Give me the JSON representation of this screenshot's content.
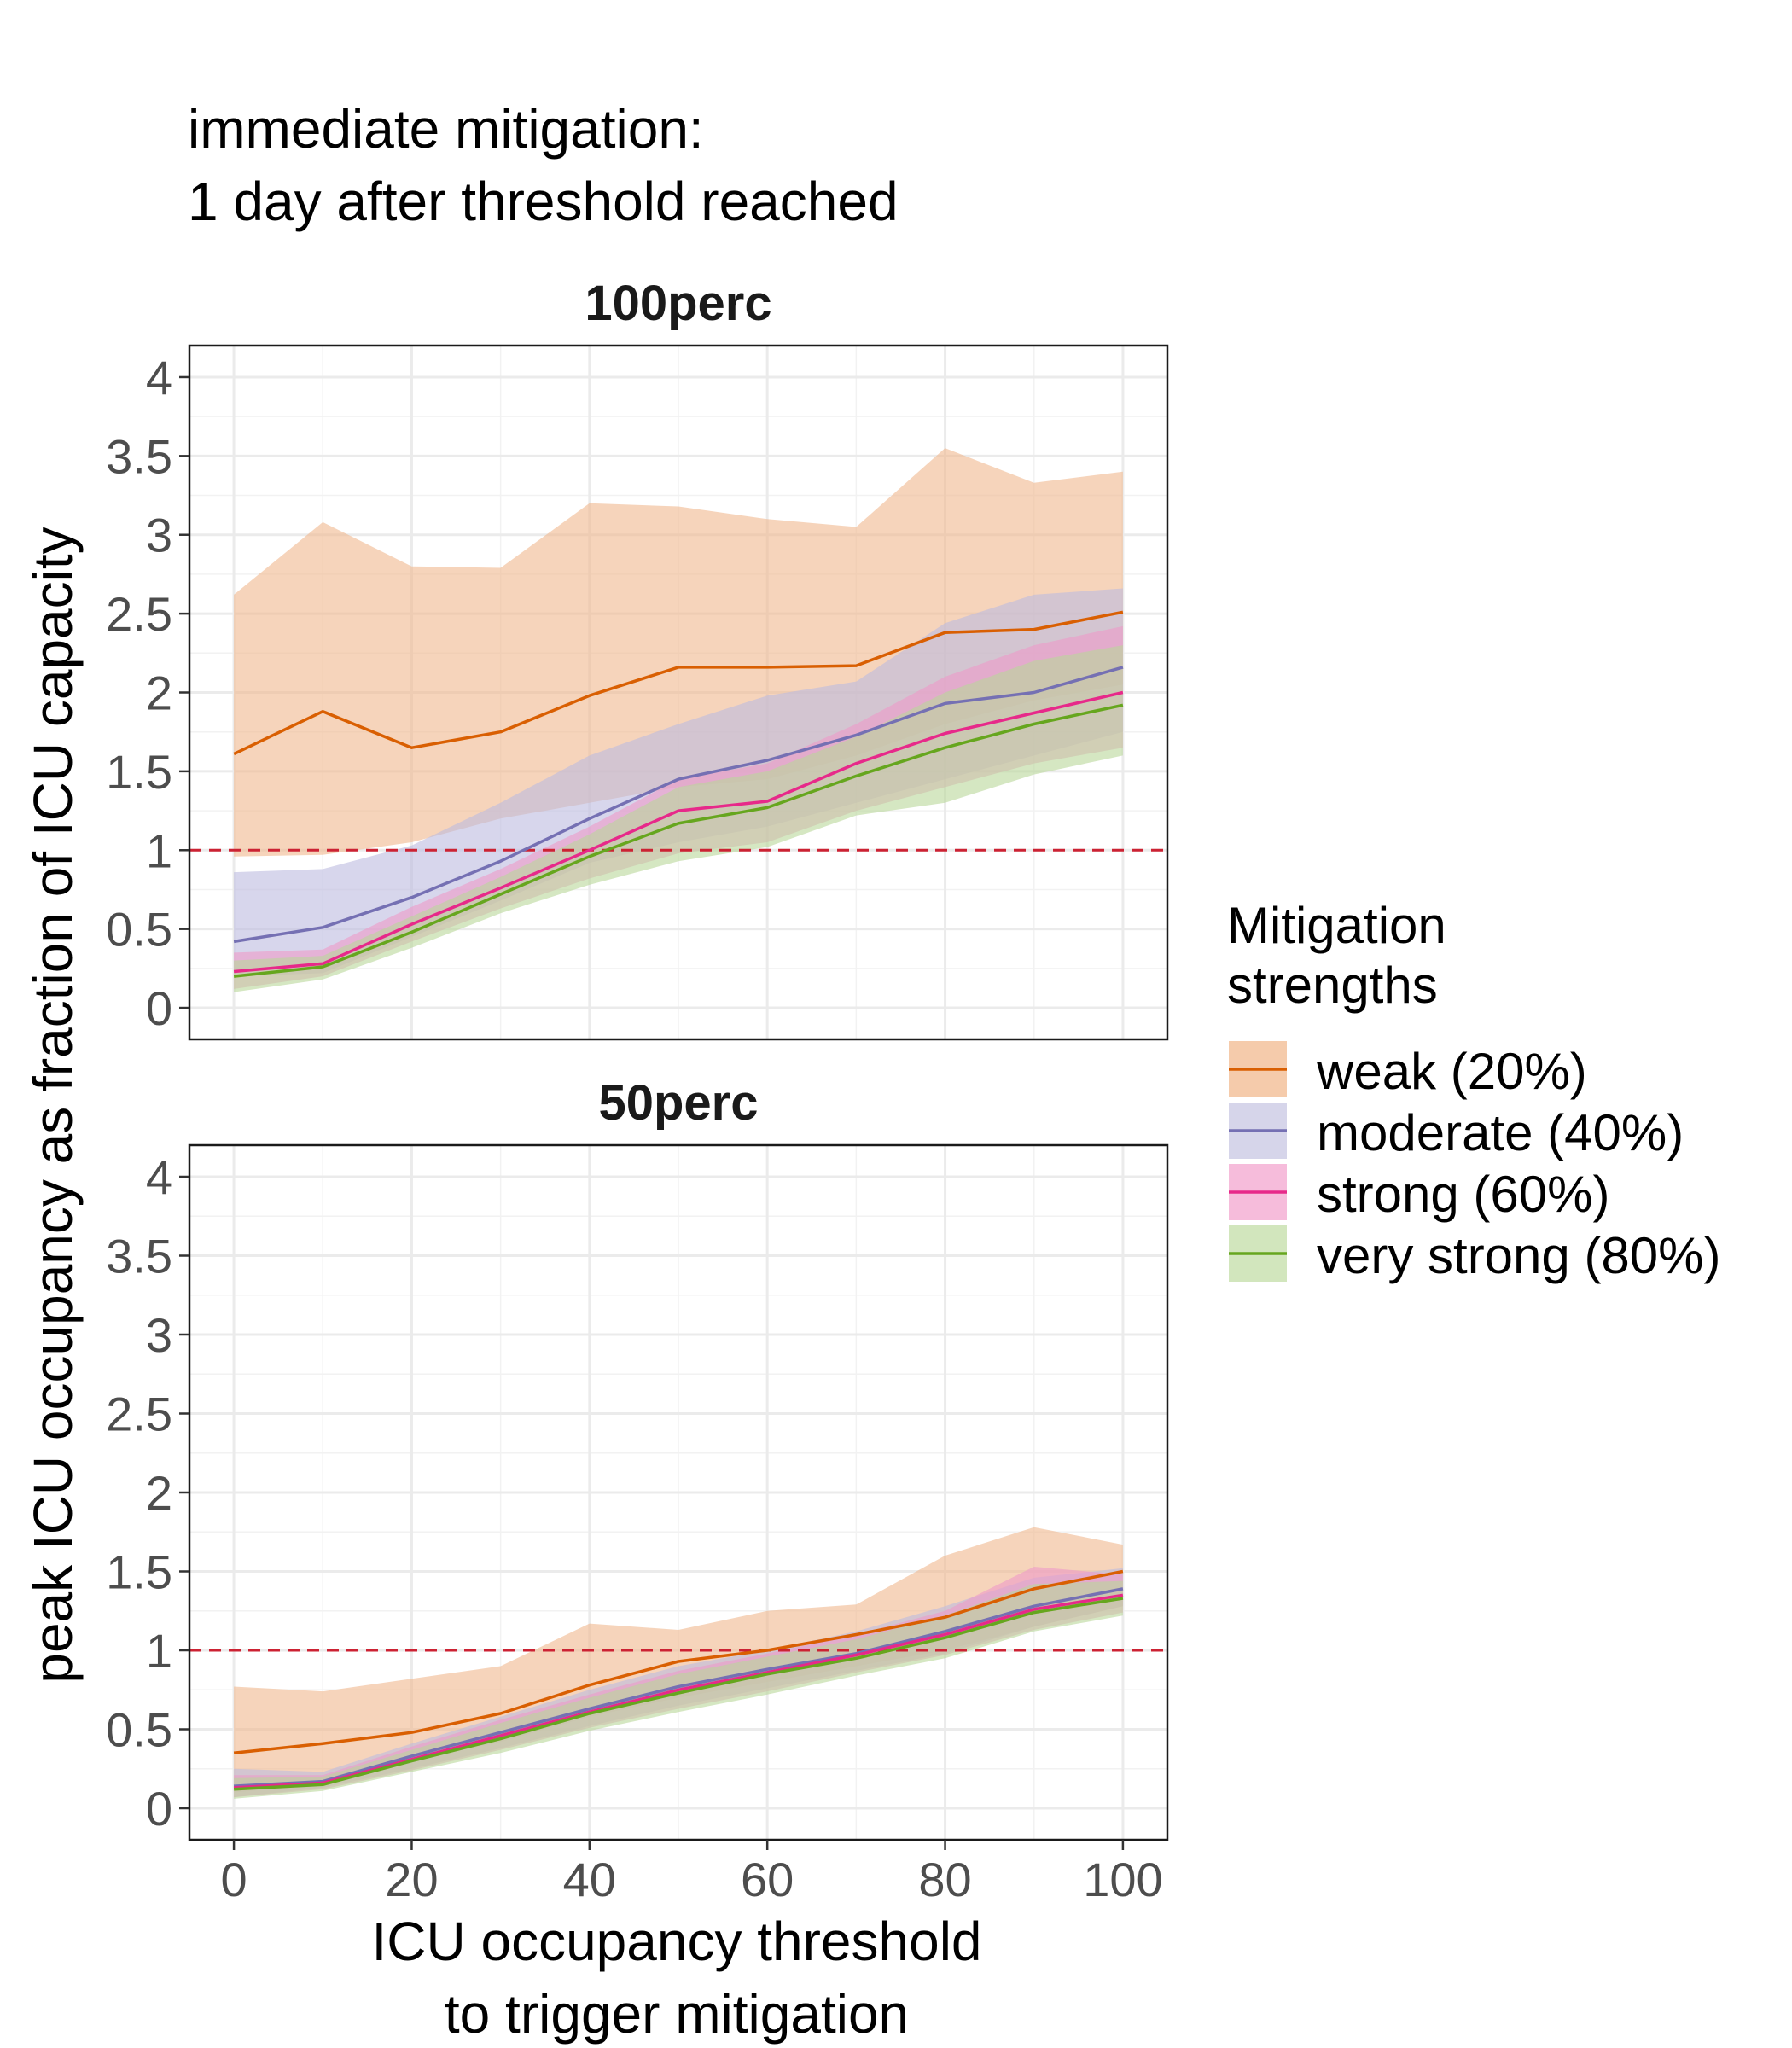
{
  "figure": {
    "title_lines": [
      "immediate mitigation:",
      "1 day after threshold reached"
    ],
    "ylabel": "peak ICU occupancy as fraction of ICU capacity",
    "xlabel_lines": [
      "ICU occupancy threshold",
      "to trigger mitigation"
    ]
  },
  "legend": {
    "title_lines": [
      "Mitigation",
      "strengths"
    ],
    "entries": [
      {
        "label": "weak (20%)",
        "line_color": "#d95f02",
        "fill_color": "#f5cbab"
      },
      {
        "label": "moderate (40%)",
        "line_color": "#7570b3",
        "fill_color": "#d6d5ea"
      },
      {
        "label": "strong (60%)",
        "line_color": "#e7298a",
        "fill_color": "#f6bcdb"
      },
      {
        "label": "very strong (80%)",
        "line_color": "#66a61e",
        "fill_color": "#d2e6bd"
      }
    ]
  },
  "chart_data": [
    {
      "type": "line",
      "title": "100perc",
      "x": [
        0,
        10,
        20,
        30,
        40,
        50,
        60,
        70,
        80,
        90,
        100
      ],
      "xlim": [
        -5,
        105
      ],
      "ylim": [
        -0.2,
        4.2
      ],
      "x_ticks": [
        0,
        20,
        40,
        60,
        80,
        100
      ],
      "y_ticks": [
        0,
        0.5,
        1,
        1.5,
        2,
        2.5,
        3,
        3.5,
        4
      ],
      "y_tick_labels": [
        "0",
        "0.5",
        "1",
        "1.5",
        "2",
        "2.5",
        "3",
        "3.5",
        "4"
      ],
      "show_x_ticks": false,
      "reference_line": {
        "y": 1,
        "color": "#cc2233",
        "style": "dashed"
      },
      "grid": true,
      "series": [
        {
          "name": "weak (20%)",
          "color": "#d95f02",
          "fill": "#f0b88d",
          "values": [
            1.61,
            1.88,
            1.65,
            1.75,
            1.98,
            2.16,
            2.16,
            2.17,
            2.38,
            2.4,
            2.51
          ],
          "lower": [
            0.96,
            0.97,
            1.05,
            1.2,
            1.3,
            1.4,
            1.45,
            1.6,
            1.8,
            1.95,
            2.05
          ],
          "upper": [
            2.62,
            3.08,
            2.8,
            2.79,
            3.2,
            3.18,
            3.1,
            3.05,
            3.55,
            3.33,
            3.4
          ]
        },
        {
          "name": "moderate (40%)",
          "color": "#7570b3",
          "fill": "#bcbadf",
          "values": [
            0.42,
            0.51,
            0.7,
            0.93,
            1.2,
            1.45,
            1.57,
            1.73,
            1.93,
            2.0,
            2.16
          ],
          "lower": [
            0.2,
            0.22,
            0.45,
            0.68,
            0.92,
            1.05,
            1.15,
            1.3,
            1.45,
            1.6,
            1.75
          ],
          "upper": [
            0.86,
            0.88,
            1.03,
            1.3,
            1.6,
            1.8,
            1.98,
            2.07,
            2.44,
            2.62,
            2.66
          ]
        },
        {
          "name": "strong (60%)",
          "color": "#e7298a",
          "fill": "#ee9ac8",
          "values": [
            0.23,
            0.28,
            0.53,
            0.76,
            1.0,
            1.25,
            1.31,
            1.55,
            1.74,
            1.87,
            2.0
          ],
          "lower": [
            0.12,
            0.2,
            0.42,
            0.63,
            0.82,
            0.98,
            1.05,
            1.25,
            1.4,
            1.55,
            1.65
          ],
          "upper": [
            0.35,
            0.37,
            0.64,
            0.88,
            1.15,
            1.45,
            1.55,
            1.8,
            2.1,
            2.3,
            2.42
          ]
        },
        {
          "name": "very strong (80%)",
          "color": "#66a61e",
          "fill": "#b9d79a",
          "values": [
            0.2,
            0.26,
            0.48,
            0.72,
            0.96,
            1.17,
            1.27,
            1.47,
            1.65,
            1.8,
            1.92
          ],
          "lower": [
            0.1,
            0.18,
            0.38,
            0.6,
            0.78,
            0.93,
            1.02,
            1.22,
            1.3,
            1.48,
            1.6
          ],
          "upper": [
            0.3,
            0.33,
            0.58,
            0.83,
            1.1,
            1.4,
            1.5,
            1.72,
            2.0,
            2.2,
            2.3
          ]
        }
      ]
    },
    {
      "type": "line",
      "title": "50perc",
      "x": [
        0,
        10,
        20,
        30,
        40,
        50,
        60,
        70,
        80,
        90,
        100
      ],
      "xlim": [
        -5,
        105
      ],
      "ylim": [
        -0.2,
        4.2
      ],
      "x_ticks": [
        0,
        20,
        40,
        60,
        80,
        100
      ],
      "x_tick_labels": [
        "0",
        "20",
        "40",
        "60",
        "80",
        "100"
      ],
      "y_ticks": [
        0,
        0.5,
        1,
        1.5,
        2,
        2.5,
        3,
        3.5,
        4
      ],
      "y_tick_labels": [
        "0",
        "0.5",
        "1",
        "1.5",
        "2",
        "2.5",
        "3",
        "3.5",
        "4"
      ],
      "show_x_ticks": true,
      "reference_line": {
        "y": 1,
        "color": "#cc2233",
        "style": "dashed"
      },
      "grid": true,
      "series": [
        {
          "name": "weak (20%)",
          "color": "#d95f02",
          "fill": "#f0b88d",
          "values": [
            0.35,
            0.41,
            0.48,
            0.6,
            0.78,
            0.93,
            1.0,
            1.1,
            1.21,
            1.39,
            1.5
          ],
          "lower": [
            0.1,
            0.15,
            0.3,
            0.42,
            0.58,
            0.7,
            0.8,
            0.9,
            1.0,
            1.15,
            1.28
          ],
          "upper": [
            0.77,
            0.74,
            0.82,
            0.9,
            1.17,
            1.13,
            1.25,
            1.29,
            1.6,
            1.78,
            1.67
          ]
        },
        {
          "name": "moderate (40%)",
          "color": "#7570b3",
          "fill": "#bcbadf",
          "values": [
            0.14,
            0.17,
            0.33,
            0.48,
            0.63,
            0.77,
            0.88,
            0.98,
            1.12,
            1.28,
            1.39
          ],
          "lower": [
            0.07,
            0.13,
            0.25,
            0.38,
            0.52,
            0.65,
            0.76,
            0.87,
            0.98,
            1.15,
            1.28
          ],
          "upper": [
            0.25,
            0.23,
            0.41,
            0.58,
            0.75,
            0.9,
            1.0,
            1.12,
            1.28,
            1.46,
            1.52
          ]
        },
        {
          "name": "strong (60%)",
          "color": "#e7298a",
          "fill": "#ee9ac8",
          "values": [
            0.13,
            0.16,
            0.31,
            0.46,
            0.61,
            0.75,
            0.86,
            0.97,
            1.1,
            1.26,
            1.35
          ],
          "lower": [
            0.07,
            0.12,
            0.24,
            0.37,
            0.51,
            0.63,
            0.74,
            0.86,
            0.97,
            1.13,
            1.24
          ],
          "upper": [
            0.21,
            0.21,
            0.39,
            0.56,
            0.72,
            0.87,
            0.98,
            1.1,
            1.25,
            1.53,
            1.48
          ]
        },
        {
          "name": "very strong (80%)",
          "color": "#66a61e",
          "fill": "#b9d79a",
          "values": [
            0.12,
            0.15,
            0.3,
            0.44,
            0.6,
            0.73,
            0.85,
            0.95,
            1.08,
            1.24,
            1.33
          ],
          "lower": [
            0.06,
            0.11,
            0.23,
            0.35,
            0.49,
            0.61,
            0.72,
            0.84,
            0.95,
            1.12,
            1.22
          ],
          "upper": [
            0.19,
            0.2,
            0.37,
            0.54,
            0.7,
            0.85,
            0.96,
            1.07,
            1.22,
            1.42,
            1.44
          ]
        }
      ]
    }
  ]
}
